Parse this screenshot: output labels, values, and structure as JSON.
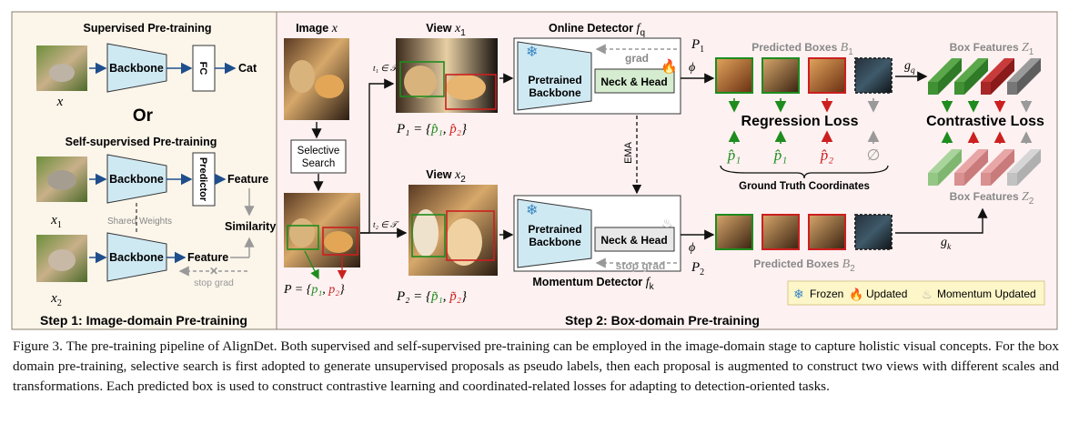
{
  "step1": {
    "title": "Step 1:  Image-domain Pre-training",
    "supervised_title": "Supervised Pre-training",
    "backbone_label": "Backbone",
    "fc_label": "FC",
    "cat_label": "Cat",
    "x_label": "x",
    "or_label": "Or",
    "self_supervised_title": "Self-supervised Pre-training",
    "predictor_label": "Predictor",
    "feature_label": "Feature",
    "similarity_label": "Similarity",
    "shared_weights_label": "Shared Weights",
    "stop_grad_label": "stop grad",
    "x1_label": "x",
    "x1_sub": "1",
    "x2_label": "x",
    "x2_sub": "2"
  },
  "step2": {
    "title": "Step 2:  Box-domain Pre-training",
    "image_label": "Image",
    "image_var": "x",
    "selective_search_line1": "Selective",
    "selective_search_line2": "Search",
    "view1_label": "View",
    "view1_var": "x",
    "view1_sub": "1",
    "view2_label": "View",
    "view2_var": "x",
    "view2_sub": "2",
    "t1_label": "t₁ ∈ 𝒯",
    "t2_label": "t₂ ∈ 𝒯",
    "p_label": "P = {",
    "p1_label": "p₁",
    "p2_label": "p₂",
    "P1_eq": "P₁ = {",
    "P2_eq": "P₂ = {",
    "p1hat": "p̂₁",
    "p2hat": "p̂₂",
    "p1tilde": "p̃₁",
    "p2tilde": "p̃₂",
    "online_detector_label": "Online Detector",
    "online_detector_var": "f",
    "online_detector_sub": "q",
    "momentum_detector_label": "Momentum Detector",
    "momentum_detector_var": "f",
    "momentum_detector_sub": "k",
    "pretrained_backbone_line1": "Pretrained",
    "pretrained_backbone_line2": "Backbone",
    "neck_head_label": "Neck & Head",
    "grad_label": "grad",
    "stop_grad_label": "stop grad",
    "ema_label": "EMA",
    "phi_label": "ϕ",
    "P1_label": "P",
    "P1_sub": "1",
    "P2_label": "P",
    "P2_sub": "2",
    "predicted_boxes_B1": "Predicted Boxes",
    "B1_var": "B",
    "B1_sub": "1",
    "predicted_boxes_B2": "Predicted Boxes",
    "B2_var": "B",
    "B2_sub": "2",
    "regression_loss_label": "Regression Loss",
    "gt_coords_label": "Ground Truth Coordinates",
    "gt_items": [
      "p̂₁",
      "p̂₁",
      "p̂₂",
      "∅"
    ],
    "gq_label": "g",
    "gq_sub": "q",
    "gk_label": "g",
    "gk_sub": "k",
    "box_features_Z1": "Box Features",
    "Z1_var": "Z",
    "Z1_sub": "1",
    "box_features_Z2": "Box Features",
    "Z2_var": "Z",
    "Z2_sub": "2",
    "contrastive_loss_label": "Contrastive Loss",
    "legend": {
      "frozen": "Frozen",
      "updated": "Updated",
      "momentum_updated": "Momentum Updated"
    }
  },
  "colors": {
    "green": "#1e8c1e",
    "red": "#cc1f1f",
    "gray": "#888888",
    "backbone_fill": "#cfe9f3",
    "neck_fill": "#d6ecd0",
    "left_bg": "#fbf5ea",
    "right_bg": "#fdf1f1",
    "legend_bg": "#fdf6c8"
  },
  "caption": {
    "text": "Figure 3. The pre-training pipeline of AlignDet. Both supervised and self-supervised pre-training can be employed in the image-domain stage to capture holistic visual concepts.  For the box domain pre-training, selective search is first adopted to generate unsupervised proposals as pseudo labels, then each proposal is augmented to construct two views with different scales and transformations.  Each predicted box is used to construct contrastive learning and coordinated-related losses for adapting to detection-oriented tasks."
  }
}
